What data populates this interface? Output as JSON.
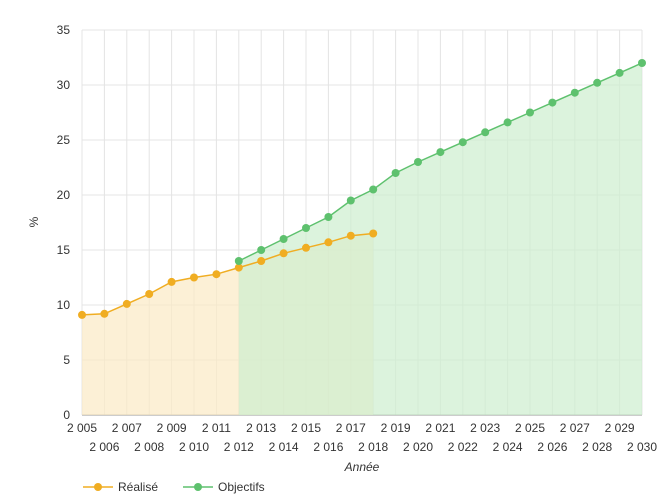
{
  "chart_data": {
    "type": "area",
    "xlabel": "Année",
    "ylabel": "%",
    "ylim": [
      0,
      35
    ],
    "yticks": [
      0,
      5,
      10,
      15,
      20,
      25,
      30,
      35
    ],
    "xlim": [
      2005,
      2030
    ],
    "xtick_labels": [
      "2 005",
      "2 006",
      "2 007",
      "2 008",
      "2 009",
      "2 010",
      "2 011",
      "2 012",
      "2 013",
      "2 014",
      "2 015",
      "2 016",
      "2 017",
      "2 018",
      "2 019",
      "2 020",
      "2 021",
      "2 022",
      "2 023",
      "2 024",
      "2 025",
      "2 026",
      "2 027",
      "2 028",
      "2 029",
      "2 030"
    ],
    "grid": true,
    "legend_position": "bottom-left",
    "series": [
      {
        "name": "Réalisé",
        "color": "#f0ad22",
        "fill": "#fbe9c4",
        "x": [
          2005,
          2006,
          2007,
          2008,
          2009,
          2010,
          2011,
          2012,
          2013,
          2014,
          2015,
          2016,
          2017,
          2018
        ],
        "values": [
          9.1,
          9.2,
          10.1,
          11.0,
          12.1,
          12.5,
          12.8,
          13.4,
          14.0,
          14.7,
          15.2,
          15.7,
          16.3,
          16.5
        ]
      },
      {
        "name": "Objectifs",
        "color": "#5ec16e",
        "fill": "#cdeece",
        "x": [
          2012,
          2013,
          2014,
          2015,
          2016,
          2017,
          2018,
          2019,
          2020,
          2021,
          2022,
          2023,
          2024,
          2025,
          2026,
          2027,
          2028,
          2029,
          2030
        ],
        "values": [
          14.0,
          15.0,
          16.0,
          17.0,
          18.0,
          19.5,
          20.5,
          22.0,
          23.0,
          23.9,
          24.8,
          25.7,
          26.6,
          27.5,
          28.4,
          29.3,
          30.2,
          31.1,
          32.0
        ]
      }
    ]
  }
}
